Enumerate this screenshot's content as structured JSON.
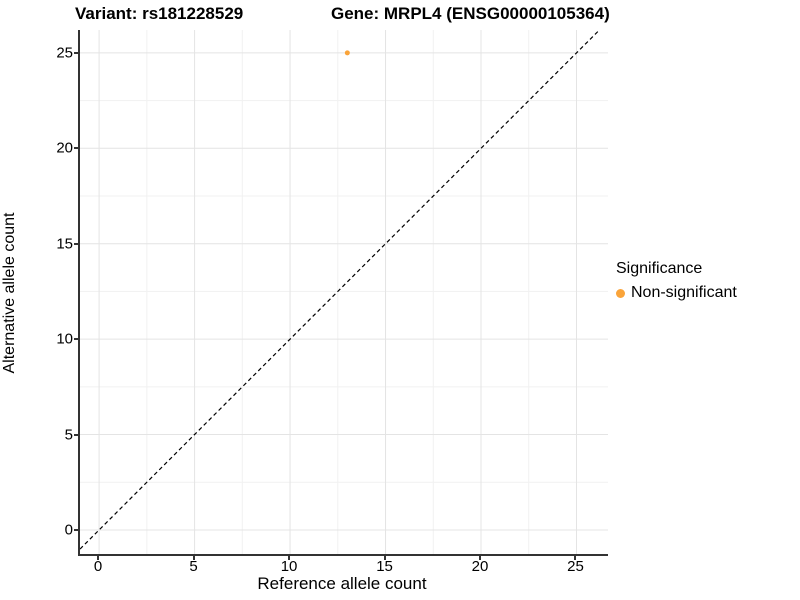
{
  "titles": {
    "variant": "Variant: rs181228529",
    "gene": "Gene: MRPL4 (ENSG00000105364)"
  },
  "chart_data": {
    "type": "scatter",
    "xlabel": "Reference allele count",
    "ylabel": "Alternative allele count",
    "xlim": [
      -1.0,
      26.65
    ],
    "ylim": [
      -1.26,
      26.2
    ],
    "x_ticks": [
      0,
      5,
      10,
      15,
      20,
      25
    ],
    "y_ticks": [
      0,
      5,
      10,
      15,
      20,
      25
    ],
    "x_minor": [
      2.5,
      7.5,
      12.5,
      17.5,
      22.5
    ],
    "y_minor": [
      2.5,
      7.5,
      12.5,
      17.5,
      22.5
    ],
    "grid": "major and minor, light gray on white",
    "reference_line": {
      "kind": "identity",
      "slope": 1,
      "intercept": 0,
      "style": "dashed",
      "color": "#000000"
    },
    "series": [
      {
        "name": "Non-significant",
        "color": "#FAA43A",
        "point_radius": 2.5,
        "points": [
          {
            "x": 13,
            "y": 25
          }
        ]
      }
    ],
    "legend_position": "right"
  },
  "legend": {
    "title": "Significance",
    "items": [
      {
        "label": "Non-significant",
        "color": "#FAA43A"
      }
    ]
  },
  "colors": {
    "background": "#ffffff",
    "axis_line": "#333333",
    "grid_major": "#e4e4e4",
    "grid_minor": "#f1f1f1",
    "point_orange": "#FAA43A",
    "text": "#000000"
  }
}
